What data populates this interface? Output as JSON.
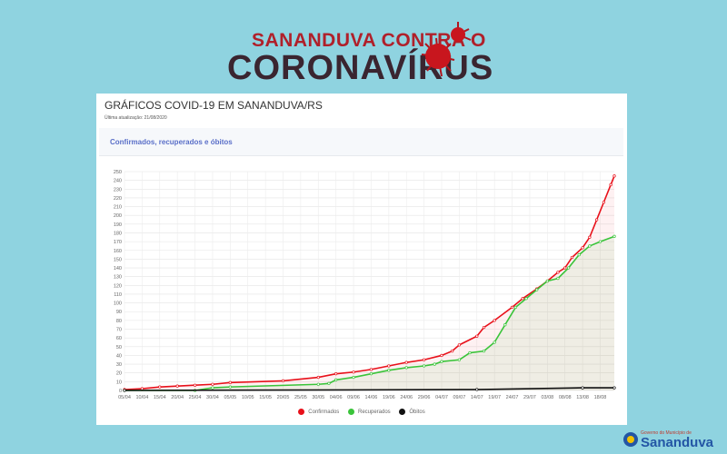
{
  "banner": {
    "line1": "SANANDUVA CONTRA O",
    "line2": "CORONAVÍRUS"
  },
  "card": {
    "title": "GRÁFICOS COVID-19 EM SANANDUVA/RS",
    "updated": "Última atualização: 21/08/2020",
    "section_header": "Confirmados, recuperados e óbitos"
  },
  "footer_logo": {
    "caption": "Governo do Município de",
    "name": "Sananduva"
  },
  "chart_data": {
    "type": "line",
    "title": "Confirmados, recuperados e óbitos",
    "xlabel": "",
    "ylabel": "",
    "ylim": [
      0,
      250
    ],
    "yticks": [
      0,
      10,
      20,
      30,
      40,
      50,
      60,
      70,
      80,
      90,
      100,
      110,
      120,
      130,
      140,
      150,
      160,
      170,
      180,
      190,
      200,
      210,
      220,
      230,
      240,
      250
    ],
    "x_start": "05/04",
    "xlim_days": [
      0,
      139
    ],
    "xtick_labels": [
      "05/04",
      "10/04",
      "15/04",
      "20/04",
      "25/04",
      "30/04",
      "05/05",
      "10/05",
      "15/05",
      "20/05",
      "25/05",
      "30/05",
      "04/06",
      "09/06",
      "14/06",
      "19/06",
      "24/06",
      "29/06",
      "04/07",
      "09/07",
      "14/07",
      "19/07",
      "24/07",
      "29/07",
      "03/08",
      "08/08",
      "13/08",
      "18/08"
    ],
    "grid": true,
    "legend_position": "bottom",
    "series": [
      {
        "name": "Confirmados",
        "color": "#e8101a",
        "x": [
          0,
          5,
          10,
          15,
          20,
          25,
          30,
          45,
          55,
          60,
          65,
          70,
          75,
          80,
          85,
          90,
          93,
          95,
          100,
          102,
          105,
          110,
          113,
          117,
          120,
          123,
          125,
          127,
          130,
          132,
          134,
          136,
          138,
          139
        ],
        "y": [
          1,
          2,
          4,
          5,
          6,
          7,
          9,
          11,
          15,
          19,
          21,
          24,
          28,
          32,
          35,
          40,
          45,
          52,
          62,
          72,
          80,
          95,
          105,
          116,
          125,
          135,
          140,
          152,
          163,
          175,
          195,
          215,
          235,
          245
        ]
      },
      {
        "name": "Recuperados",
        "color": "#3ac43a",
        "x": [
          0,
          20,
          25,
          30,
          55,
          58,
          60,
          65,
          70,
          75,
          80,
          85,
          88,
          90,
          95,
          98,
          102,
          105,
          108,
          111,
          114,
          117,
          120,
          123,
          126,
          129,
          132,
          135,
          139
        ],
        "y": [
          0,
          0,
          3,
          4,
          7,
          8,
          12,
          15,
          19,
          23,
          26,
          28,
          30,
          33,
          35,
          43,
          45,
          55,
          75,
          95,
          105,
          115,
          125,
          128,
          140,
          155,
          165,
          170,
          176
        ]
      },
      {
        "name": "Óbitos",
        "color": "#111111",
        "x": [
          0,
          100,
          130,
          139
        ],
        "y": [
          0,
          1,
          3,
          3
        ]
      }
    ]
  }
}
